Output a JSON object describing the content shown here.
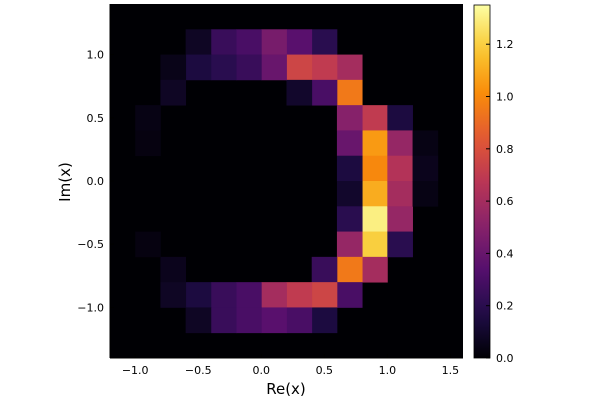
{
  "chart_data": {
    "type": "heatmap",
    "title": "",
    "xlabel": "Re(x)",
    "ylabel": "Im(x)",
    "xlim": [
      -1.2,
      1.6
    ],
    "ylim": [
      -1.4,
      1.4
    ],
    "x_ticks": [
      -1.0,
      -0.5,
      0.0,
      0.5,
      1.0,
      1.5
    ],
    "x_tick_labels": [
      "−1.0",
      "−0.5",
      "0.0",
      "0.5",
      "1.0",
      "1.5"
    ],
    "y_ticks": [
      -1.0,
      -0.5,
      0.0,
      0.5,
      1.0
    ],
    "y_tick_labels": [
      "−1.0",
      "−0.5",
      "0.0",
      "0.5",
      "1.0"
    ],
    "colorbar": {
      "colormap": "inferno",
      "range": [
        0.0,
        1.35
      ],
      "ticks": [
        0.0,
        0.2,
        0.4,
        0.6,
        0.8,
        1.0,
        1.2
      ],
      "tick_labels": [
        "0.0",
        "0.2",
        "0.4",
        "0.6",
        "0.8",
        "1.0",
        "1.2"
      ]
    },
    "grid": false,
    "legend": "colorbar-right",
    "bins": {
      "x_edges_start": -1.2,
      "bin_width": 0.2,
      "x_count": 14,
      "y_edges_start": -1.4,
      "bin_height": 0.2,
      "y_count": 14
    },
    "cells": [
      {
        "x": 0.9,
        "y": 0.5,
        "v": 0.7
      },
      {
        "x": 0.9,
        "y": 0.3,
        "v": 1.05
      },
      {
        "x": 0.9,
        "y": 0.1,
        "v": 1.0
      },
      {
        "x": 0.9,
        "y": -0.1,
        "v": 1.1
      },
      {
        "x": 0.9,
        "y": -0.3,
        "v": 1.3
      },
      {
        "x": 0.9,
        "y": -0.5,
        "v": 1.2
      },
      {
        "x": 0.9,
        "y": -0.7,
        "v": 0.6
      },
      {
        "x": 0.7,
        "y": 0.9,
        "v": 0.6
      },
      {
        "x": 0.7,
        "y": 0.7,
        "v": 0.95
      },
      {
        "x": 0.7,
        "y": 0.5,
        "v": 0.5
      },
      {
        "x": 0.7,
        "y": 0.3,
        "v": 0.4
      },
      {
        "x": 0.7,
        "y": 0.1,
        "v": 0.15
      },
      {
        "x": 0.7,
        "y": -0.1,
        "v": 0.1
      },
      {
        "x": 0.7,
        "y": -0.3,
        "v": 0.2
      },
      {
        "x": 0.7,
        "y": -0.5,
        "v": 0.55
      },
      {
        "x": 0.7,
        "y": -0.7,
        "v": 0.95
      },
      {
        "x": 0.7,
        "y": -0.9,
        "v": 0.3
      },
      {
        "x": 1.1,
        "y": 0.5,
        "v": 0.15
      },
      {
        "x": 1.1,
        "y": 0.3,
        "v": 0.55
      },
      {
        "x": 1.1,
        "y": 0.1,
        "v": 0.65
      },
      {
        "x": 1.1,
        "y": -0.1,
        "v": 0.6
      },
      {
        "x": 1.1,
        "y": -0.3,
        "v": 0.55
      },
      {
        "x": 1.1,
        "y": -0.5,
        "v": 0.2
      },
      {
        "x": 0.5,
        "y": 1.1,
        "v": 0.2
      },
      {
        "x": 0.5,
        "y": 0.9,
        "v": 0.7
      },
      {
        "x": 0.5,
        "y": 0.7,
        "v": 0.3
      },
      {
        "x": 0.5,
        "y": -0.7,
        "v": 0.25
      },
      {
        "x": 0.5,
        "y": -0.9,
        "v": 0.75
      },
      {
        "x": 0.5,
        "y": -1.1,
        "v": 0.15
      },
      {
        "x": 0.3,
        "y": 1.1,
        "v": 0.35
      },
      {
        "x": 0.3,
        "y": 0.9,
        "v": 0.75
      },
      {
        "x": 0.3,
        "y": 0.7,
        "v": 0.1
      },
      {
        "x": 0.3,
        "y": -0.9,
        "v": 0.7
      },
      {
        "x": 0.3,
        "y": -1.1,
        "v": 0.3
      },
      {
        "x": 0.1,
        "y": 1.1,
        "v": 0.45
      },
      {
        "x": 0.1,
        "y": 0.9,
        "v": 0.4
      },
      {
        "x": 0.1,
        "y": -0.9,
        "v": 0.6
      },
      {
        "x": 0.1,
        "y": -1.1,
        "v": 0.35
      },
      {
        "x": -0.1,
        "y": 1.1,
        "v": 0.3
      },
      {
        "x": -0.1,
        "y": 0.9,
        "v": 0.25
      },
      {
        "x": -0.1,
        "y": -0.9,
        "v": 0.3
      },
      {
        "x": -0.1,
        "y": -1.1,
        "v": 0.3
      },
      {
        "x": -0.3,
        "y": 1.1,
        "v": 0.25
      },
      {
        "x": -0.3,
        "y": 0.9,
        "v": 0.2
      },
      {
        "x": -0.3,
        "y": -0.9,
        "v": 0.25
      },
      {
        "x": -0.3,
        "y": -1.1,
        "v": 0.25
      },
      {
        "x": -0.5,
        "y": 1.1,
        "v": 0.08
      },
      {
        "x": -0.5,
        "y": 0.9,
        "v": 0.15
      },
      {
        "x": -0.5,
        "y": -0.9,
        "v": 0.15
      },
      {
        "x": -0.5,
        "y": -1.1,
        "v": 0.08
      },
      {
        "x": -0.7,
        "y": 0.9,
        "v": 0.05
      },
      {
        "x": -0.7,
        "y": 0.7,
        "v": 0.08
      },
      {
        "x": -0.7,
        "y": -0.7,
        "v": 0.06
      },
      {
        "x": -0.7,
        "y": -0.9,
        "v": 0.08
      },
      {
        "x": -0.9,
        "y": 0.5,
        "v": 0.04
      },
      {
        "x": -0.9,
        "y": 0.3,
        "v": 0.03
      },
      {
        "x": -0.9,
        "y": -0.5,
        "v": 0.03
      },
      {
        "x": 1.3,
        "y": 0.3,
        "v": 0.04
      },
      {
        "x": 1.3,
        "y": 0.1,
        "v": 0.06
      },
      {
        "x": 1.3,
        "y": -0.1,
        "v": 0.04
      }
    ]
  }
}
